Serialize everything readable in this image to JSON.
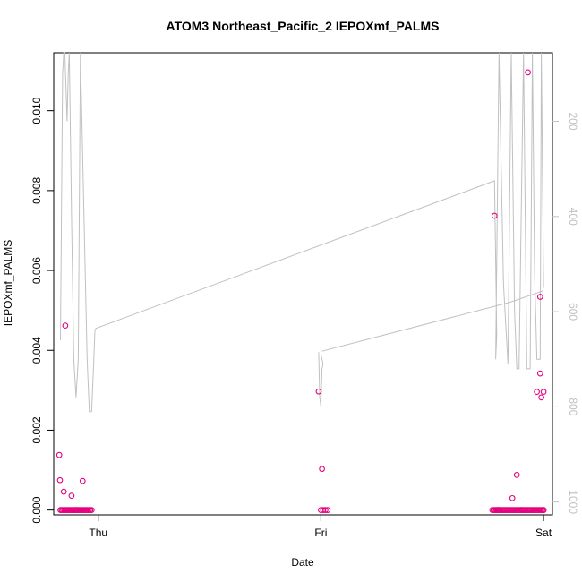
{
  "chart_data": {
    "type": "scatter",
    "title": "ATOM3 Northeast_Pacific_2 IEPOXmf_PALMS",
    "xlabel": "Date",
    "ylabel": "IEPOXmf_PALMS",
    "x_range_days": [
      -0.2,
      2.04
    ],
    "x_ticks": [
      {
        "value": 0,
        "label": "Thu"
      },
      {
        "value": 1,
        "label": "Fri"
      },
      {
        "value": 2,
        "label": "Sat"
      }
    ],
    "ylim": [
      -0.00012,
      0.01145
    ],
    "y_ticks": [
      {
        "value": 0.0,
        "label": "0.000"
      },
      {
        "value": 0.002,
        "label": "0.002"
      },
      {
        "value": 0.004,
        "label": "0.004"
      },
      {
        "value": 0.006,
        "label": "0.006"
      },
      {
        "value": 0.008,
        "label": "0.008"
      },
      {
        "value": 0.01,
        "label": "0.010"
      }
    ],
    "right_axis": {
      "label": "",
      "reversed": true,
      "range": [
        1027,
        56
      ],
      "ticks": [
        {
          "value": 200,
          "label": "200"
        },
        {
          "value": 400,
          "label": "400"
        },
        {
          "value": 600,
          "label": "600"
        },
        {
          "value": 800,
          "label": "800"
        },
        {
          "value": 1000,
          "label": "1000"
        }
      ],
      "color": "#c0c0c0"
    },
    "series": [
      {
        "kind": "points",
        "color": "#e6007e",
        "x": [
          -0.175,
          -0.172,
          -0.155,
          -0.148,
          -0.12,
          -0.07,
          -0.1,
          1.005,
          1.02,
          0.99,
          1.0,
          1.01,
          1.03,
          1.78,
          1.795,
          1.86,
          1.88,
          1.93,
          1.97,
          1.985,
          1.99,
          1.985,
          1.8,
          1.9,
          2.0,
          2.0
        ],
        "y": [
          0.00138,
          0.00075,
          0.00046,
          0.00462,
          0.00036,
          0.00073,
          0.0,
          0.00103,
          0.0,
          0.00297,
          0.0,
          0.0,
          0.0,
          0.00737,
          0.0,
          0.0003,
          0.00088,
          0.01096,
          0.00296,
          0.00534,
          0.00282,
          0.00342,
          0.0,
          0.0,
          0.0,
          0.00296
        ]
      },
      {
        "kind": "points",
        "color": "#e6007e",
        "x_start": -0.17,
        "x_end": -0.03,
        "y": 0.0,
        "count": 24
      },
      {
        "kind": "points",
        "color": "#e6007e",
        "x_start": 1.77,
        "x_end": 2.0,
        "y": 0.0,
        "count": 40
      },
      {
        "kind": "line",
        "color": "#c0c0c0",
        "axis": "right",
        "x": [
          -0.17,
          -0.16,
          -0.155,
          -0.15,
          -0.14,
          -0.135,
          -0.13,
          -0.12,
          -0.11,
          -0.1,
          -0.09,
          -0.08,
          -0.05,
          -0.04,
          -0.03,
          -0.02,
          -0.015,
          -0.01,
          1.78,
          1.79,
          1.785,
          1.8,
          1.81,
          1.82,
          1.84,
          1.855,
          1.87,
          1.88,
          1.89,
          1.91,
          1.925,
          1.94,
          1.95,
          1.96,
          1.97,
          1.985,
          1.99,
          2.0
        ],
        "y": [
          660,
          100,
          56,
          56,
          200,
          100,
          56,
          400,
          700,
          780,
          700,
          56,
          700,
          810,
          810,
          700,
          640,
          635,
          325,
          650,
          700,
          56,
          300,
          540,
          710,
          56,
          600,
          720,
          720,
          56,
          720,
          720,
          56,
          520,
          700,
          700,
          56,
          550
        ]
      },
      {
        "kind": "line",
        "color": "#c0c0c0",
        "axis": "right",
        "x": [
          0.99,
          0.995,
          1.0,
          1.005,
          1.01,
          1.0
        ],
        "y": [
          685,
          780,
          800,
          720,
          710,
          690
        ]
      },
      {
        "kind": "line",
        "color": "#c0c0c0",
        "axis": "right",
        "x": [
          1.005,
          1.85,
          2.0
        ],
        "y": [
          683,
          580,
          556
        ]
      }
    ]
  }
}
